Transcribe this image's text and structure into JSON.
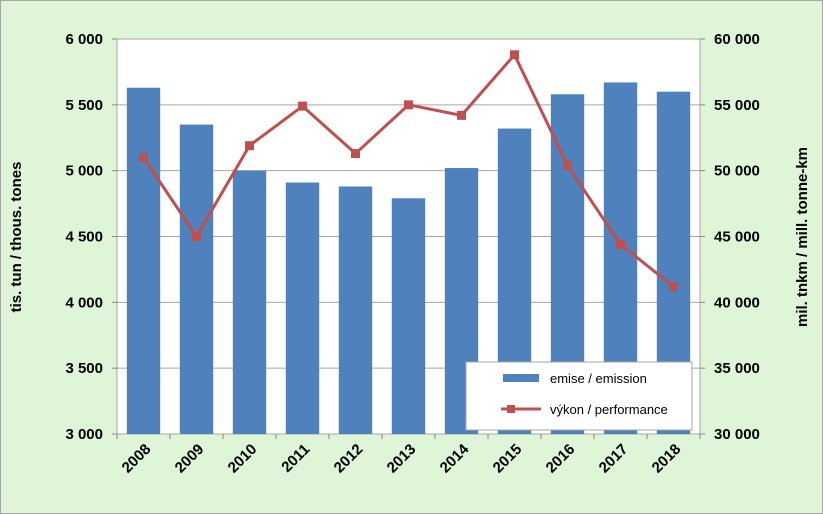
{
  "chart_data": {
    "type": "bar+line",
    "categories": [
      "2008",
      "2009",
      "2010",
      "2011",
      "2012",
      "2013",
      "2014",
      "2015",
      "2016",
      "2017",
      "2018"
    ],
    "series": [
      {
        "name": "emise / emission",
        "type": "bar",
        "axis": "left",
        "color": "#4f81bd",
        "values": [
          5630,
          5350,
          5000,
          4910,
          4880,
          4790,
          5020,
          5320,
          5580,
          5670,
          5600
        ]
      },
      {
        "name": "výkon / performance",
        "type": "line",
        "axis": "right",
        "color": "#c0504d",
        "values": [
          51000,
          45000,
          51900,
          54900,
          51300,
          55000,
          54200,
          58800,
          50400,
          44400,
          41200
        ]
      }
    ],
    "ylabel_left": "tis. tun / thous. tones",
    "ylabel_right": "mil. tnkm / mill. tonne-km",
    "ylim_left": [
      3000,
      6000
    ],
    "ylim_right": [
      30000,
      60000
    ],
    "yticks_left": [
      "3 000",
      "3 500",
      "4 000",
      "4 500",
      "5 000",
      "5 500",
      "6 000"
    ],
    "yticks_right": [
      "30 000",
      "35 000",
      "40 000",
      "45 000",
      "50 000",
      "55 000",
      "60 000"
    ],
    "grid": true,
    "legend_position": "bottom-right"
  }
}
